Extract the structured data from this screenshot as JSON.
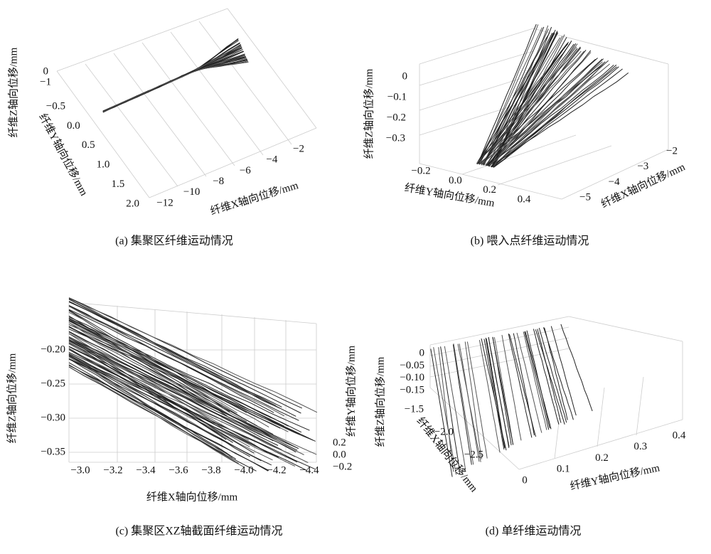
{
  "panels": [
    {
      "caption": "(a) 集聚区纤维运动情况",
      "axes": [
        {
          "label": "纤维X轴向位移/mm",
          "ticks": [
            "−12",
            "−10",
            "−8",
            "−6",
            "−4",
            "−2"
          ]
        },
        {
          "label": "纤维Y轴向位移/mm",
          "ticks": [
            "−0.5",
            "0.0",
            "0.5",
            "1.0",
            "1.5",
            "2.0"
          ]
        },
        {
          "label": "纤维Z轴向位移/mm",
          "ticks": [
            "0",
            "−1"
          ]
        }
      ]
    },
    {
      "caption": "(b) 喂入点纤维运动情况",
      "axes": [
        {
          "label": "纤维X轴向位移/mm",
          "ticks": [
            "−2",
            "−3",
            "−4",
            "−5"
          ]
        },
        {
          "label": "纤维Y轴向位移/mm",
          "ticks": [
            "−0.2",
            "0.0",
            "0.2",
            "0.4"
          ]
        },
        {
          "label": "纤维Z轴向位移/mm",
          "ticks": [
            "0",
            "−0.1",
            "−0.2",
            "−0.3"
          ]
        }
      ]
    },
    {
      "caption": "(c) 集聚区XZ轴截面纤维运动情况",
      "axes": [
        {
          "label": "纤维X轴向位移/mm",
          "ticks": [
            "−3.0",
            "−3.2",
            "−3.4",
            "−3.6",
            "−3.8",
            "−4.0",
            "−4.2",
            "−4.4"
          ]
        },
        {
          "label": "纤维Y轴向位移/mm",
          "ticks": [
            "0.2",
            "0.0",
            "−0.2"
          ]
        },
        {
          "label": "纤维Z轴向位移/mm",
          "ticks": [
            "−0.20",
            "−0.25",
            "−0.30",
            "−0.35"
          ]
        }
      ]
    },
    {
      "caption": "(d) 单纤维运动情况",
      "axes": [
        {
          "label": "纤维X轴向位移/mm",
          "ticks": [
            "−1.5",
            "−2.0",
            "−2.5"
          ]
        },
        {
          "label": "纤维Y轴向位移/mm",
          "ticks": [
            "0",
            "0.1",
            "0.2",
            "0.3",
            "0.4"
          ]
        },
        {
          "label": "纤维Z轴向位移/mm",
          "ticks": [
            "0",
            "−0.05",
            "−0.10",
            "−0.15"
          ]
        }
      ]
    }
  ]
}
